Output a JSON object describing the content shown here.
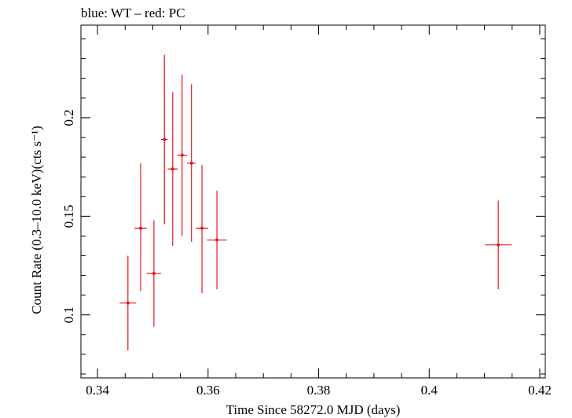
{
  "chart_data": {
    "type": "scatter",
    "title": "blue: WT – red: PC",
    "xlabel": "Time Since 58272.0 MJD (days)",
    "ylabel": "Count Rate (0.3–10.0 keV)(cts s⁻¹)",
    "xlim": [
      0.337,
      0.421
    ],
    "ylim": [
      0.068,
      0.247
    ],
    "xticks": [
      0.34,
      0.36,
      0.38,
      0.4,
      0.42
    ],
    "xtick_labels": [
      "0.34",
      "0.36",
      "0.38",
      "0.4",
      "0.42"
    ],
    "yticks": [
      0.1,
      0.15,
      0.2
    ],
    "ytick_labels": [
      "0.1",
      "0.15",
      "0.2"
    ],
    "series": [
      {
        "name": "PC",
        "color": "#e8151b",
        "points": [
          {
            "x": 0.3455,
            "xerr": 0.0015,
            "y": 0.106,
            "ylo": 0.082,
            "yhi": 0.13
          },
          {
            "x": 0.3478,
            "xerr": 0.0011,
            "y": 0.144,
            "ylo": 0.112,
            "yhi": 0.177
          },
          {
            "x": 0.3502,
            "xerr": 0.0013,
            "y": 0.121,
            "ylo": 0.094,
            "yhi": 0.148
          },
          {
            "x": 0.3521,
            "xerr": 0.0006,
            "y": 0.189,
            "ylo": 0.146,
            "yhi": 0.232
          },
          {
            "x": 0.3536,
            "xerr": 0.0009,
            "y": 0.174,
            "ylo": 0.135,
            "yhi": 0.213
          },
          {
            "x": 0.3553,
            "xerr": 0.0009,
            "y": 0.181,
            "ylo": 0.14,
            "yhi": 0.222
          },
          {
            "x": 0.357,
            "xerr": 0.0008,
            "y": 0.177,
            "ylo": 0.137,
            "yhi": 0.217
          },
          {
            "x": 0.3589,
            "xerr": 0.0011,
            "y": 0.144,
            "ylo": 0.111,
            "yhi": 0.176
          },
          {
            "x": 0.3616,
            "xerr": 0.0018,
            "y": 0.138,
            "ylo": 0.113,
            "yhi": 0.163
          },
          {
            "x": 0.4125,
            "xerr": 0.0024,
            "y": 0.1355,
            "ylo": 0.113,
            "yhi": 0.158
          }
        ]
      }
    ]
  }
}
